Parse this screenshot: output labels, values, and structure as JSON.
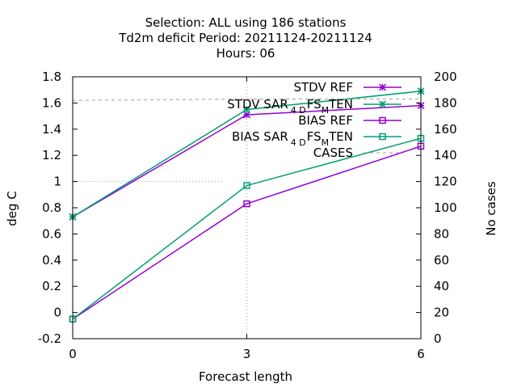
{
  "header": {
    "line1": "Selection: ALL using   186 stations",
    "line2": "Td2m deficit   Period: 20211124-20211124",
    "line3": "Hours:  06"
  },
  "chart_data": {
    "type": "line",
    "xlabel": "Forecast length",
    "ylabel": "deg C",
    "y2label": "No cases",
    "x": [
      0,
      3,
      6
    ],
    "xticks": [
      "0",
      "3",
      "6"
    ],
    "ylim": [
      -0.2,
      1.8
    ],
    "yticks": [
      "-0.2",
      "0",
      "0.2",
      "0.4",
      "0.6",
      "0.8",
      "1",
      "1.2",
      "1.4",
      "1.6",
      "1.8"
    ],
    "y2lim": [
      0,
      200
    ],
    "y2ticks": [
      "0",
      "20",
      "40",
      "60",
      "80",
      "100",
      "120",
      "140",
      "160",
      "180",
      "200"
    ],
    "grid": "dotted at x=3 and y=1",
    "legend_position": "top-right",
    "series": [
      {
        "name": "STDV REF",
        "values": [
          0.73,
          1.51,
          1.58
        ],
        "axis": "y1",
        "color": "#9400d3",
        "marker": "star",
        "style": "solid"
      },
      {
        "name": "STDV SAR_4DFS_MTEN",
        "label_parts": [
          "STDV SAR",
          "4 D",
          "FS",
          "M",
          "TEN"
        ],
        "values": [
          0.73,
          1.55,
          1.69
        ],
        "axis": "y1",
        "color": "#009e73",
        "marker": "star",
        "style": "solid"
      },
      {
        "name": "BIAS REF",
        "values": [
          -0.05,
          0.83,
          1.27
        ],
        "axis": "y1",
        "color": "#9400d3",
        "marker": "square",
        "style": "solid"
      },
      {
        "name": "BIAS SAR_4DFS_MTEN",
        "label_parts": [
          "BIAS SAR",
          "4 D",
          "FS",
          "M",
          "TEN"
        ],
        "values": [
          -0.05,
          0.97,
          1.33
        ],
        "axis": "y1",
        "color": "#009e73",
        "marker": "square",
        "style": "solid"
      },
      {
        "name": "CASES",
        "values": [
          182,
          183,
          183
        ],
        "axis": "y2",
        "color": "#a0a0a0",
        "marker": "none",
        "style": "dashed"
      }
    ]
  }
}
